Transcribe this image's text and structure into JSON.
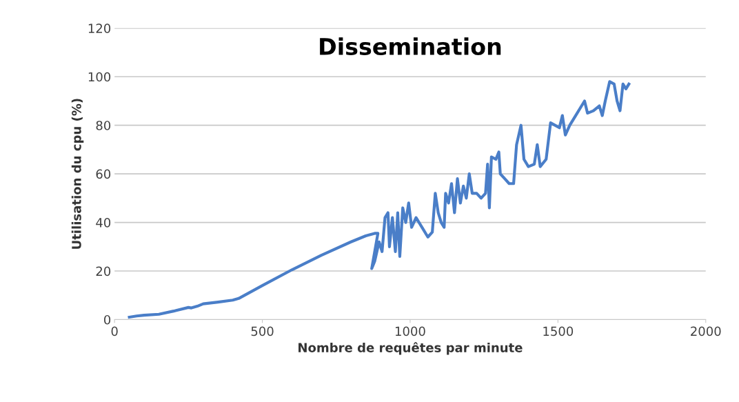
{
  "chart_data": {
    "type": "line",
    "title": "Dissemination",
    "xlabel": "Nombre de requêtes par minute",
    "ylabel": "Utilisation du cpu (%)",
    "xlim": [
      0,
      2000
    ],
    "xticks": [
      0,
      500,
      1000,
      1500,
      2000
    ],
    "ylim": [
      0,
      120
    ],
    "yticks": [
      0,
      20,
      40,
      60,
      80,
      100,
      120
    ],
    "grid": "y",
    "series": [
      {
        "color": "#4a7ec8",
        "x": [
          50,
          75,
          100,
          150,
          200,
          250,
          260,
          280,
          300,
          350,
          400,
          420,
          500,
          600,
          700,
          800,
          850,
          880,
          891,
          870,
          880,
          895,
          905,
          915,
          925,
          930,
          940,
          950,
          958,
          965,
          975,
          985,
          995,
          1005,
          1020,
          1040,
          1060,
          1075,
          1085,
          1095,
          1105,
          1115,
          1120,
          1130,
          1140,
          1150,
          1160,
          1170,
          1180,
          1190,
          1200,
          1210,
          1225,
          1240,
          1255,
          1262,
          1268,
          1275,
          1290,
          1300,
          1305,
          1320,
          1335,
          1350,
          1360,
          1375,
          1385,
          1400,
          1420,
          1430,
          1440,
          1460,
          1475,
          1490,
          1505,
          1515,
          1525,
          1540,
          1560,
          1580,
          1590,
          1600,
          1620,
          1640,
          1650,
          1660,
          1675,
          1690,
          1700,
          1710,
          1720,
          1730,
          1740
        ],
        "values": [
          1,
          1.5,
          1.8,
          2.2,
          3.5,
          5,
          4.8,
          5.5,
          6.5,
          7.2,
          8,
          8.7,
          14,
          20.5,
          26.5,
          32,
          34.5,
          35.5,
          35.5,
          21,
          24,
          32,
          28,
          42,
          44,
          30,
          42,
          28,
          44,
          26,
          46,
          40,
          48,
          38,
          42,
          38,
          34,
          36,
          52,
          44,
          40,
          38,
          52,
          48,
          56,
          44,
          58,
          48,
          55,
          50,
          60,
          52,
          52,
          50,
          52,
          64,
          46,
          67,
          66,
          69,
          60,
          58,
          56,
          56,
          72,
          80,
          66,
          63,
          64,
          72,
          63,
          66,
          81,
          80,
          79,
          84,
          76,
          80,
          84,
          88,
          90,
          85,
          86,
          88,
          84,
          90,
          98,
          97,
          90,
          86,
          97,
          95,
          97
        ]
      }
    ]
  }
}
